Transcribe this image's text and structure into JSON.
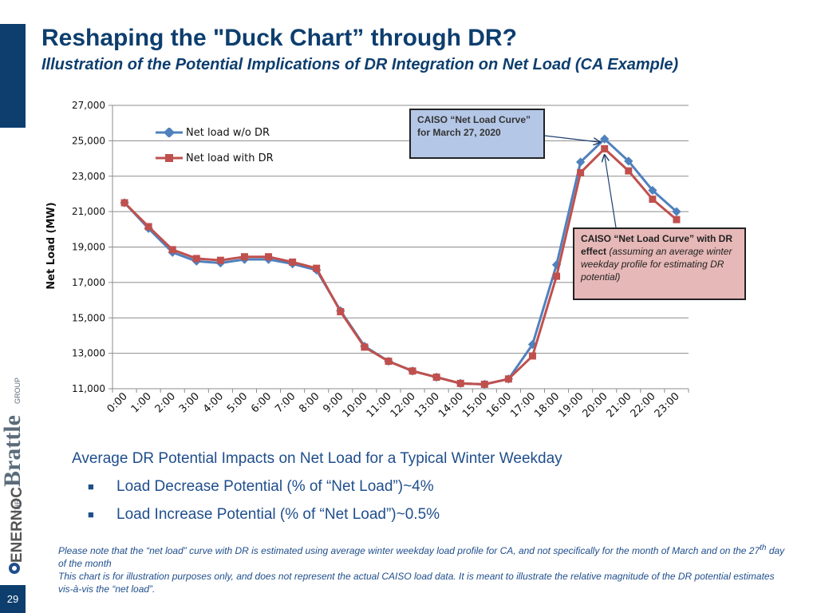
{
  "page_number": "29",
  "title": "Reshaping the \"Duck Chart” through DR?",
  "subtitle": "Illustration of the Potential Implications of DR Integration on Net Load (CA Example)",
  "logos": {
    "brattle": "THE Brattle GROUP",
    "enernoc": "ENERNOC"
  },
  "callouts": {
    "blue": "CAISO “Net Load Curve” for March 27, 2020",
    "red_bold": "CAISO “Net Load Curve” with DR effect",
    "red_italic": "(assuming an average winter weekday profile for estimating DR potential)"
  },
  "summary": {
    "heading": "Average DR Potential Impacts on Net Load for a Typical Winter Weekday",
    "bullets": [
      "Load Decrease Potential (% of “Net Load”)~4%",
      "Load Increase Potential (% of “Net Load”)~0.5%"
    ]
  },
  "notes": {
    "line1_pre": "Please note that the “net load” curve with DR is estimated using average winter weekday load profile for CA, and not specifically for the month of March and on the 27",
    "line1_sup": "th",
    "line1_post": " day of the month",
    "line2": "This chart is for illustration purposes only, and does not represent the actual CAISO load data. It is meant to illustrate the relative magnitude of the DR potential estimates vis-à-vis the “net load”."
  },
  "colors": {
    "series_without_dr": "#4f81bd",
    "series_with_dr": "#c0504d",
    "title": "#0d3e6e",
    "text_blue": "#1f4e8c"
  },
  "chart_data": {
    "type": "line",
    "ylabel": "Net Load (MW)",
    "xlabel": "",
    "ylim": [
      11000,
      27000
    ],
    "yticks": [
      11000,
      13000,
      15000,
      17000,
      19000,
      21000,
      23000,
      25000,
      27000
    ],
    "ytick_labels": [
      "11,000",
      "13,000",
      "15,000",
      "17,000",
      "19,000",
      "21,000",
      "23,000",
      "25,000",
      "27,000"
    ],
    "grid": true,
    "legend_position": "top-left",
    "categories": [
      "0:00",
      "1:00",
      "2:00",
      "3:00",
      "4:00",
      "5:00",
      "6:00",
      "7:00",
      "8:00",
      "9:00",
      "10:00",
      "11:00",
      "12:00",
      "13:00",
      "14:00",
      "15:00",
      "16:00",
      "17:00",
      "18:00",
      "19:00",
      "20:00",
      "21:00",
      "22:00",
      "23:00"
    ],
    "series": [
      {
        "name": "Net load w/o DR",
        "values": [
          21500,
          20050,
          18700,
          18200,
          18100,
          18300,
          18300,
          18050,
          17700,
          15400,
          13400,
          12550,
          12000,
          11650,
          11300,
          11250,
          11550,
          13500,
          18000,
          23800,
          25100,
          23850,
          22200,
          21000
        ]
      },
      {
        "name": "Net load with DR",
        "values": [
          21500,
          20150,
          18850,
          18350,
          18250,
          18450,
          18450,
          18150,
          17800,
          15350,
          13350,
          12550,
          12000,
          11650,
          11300,
          11250,
          11550,
          12850,
          17350,
          23200,
          24550,
          23300,
          21700,
          20550
        ]
      }
    ]
  }
}
